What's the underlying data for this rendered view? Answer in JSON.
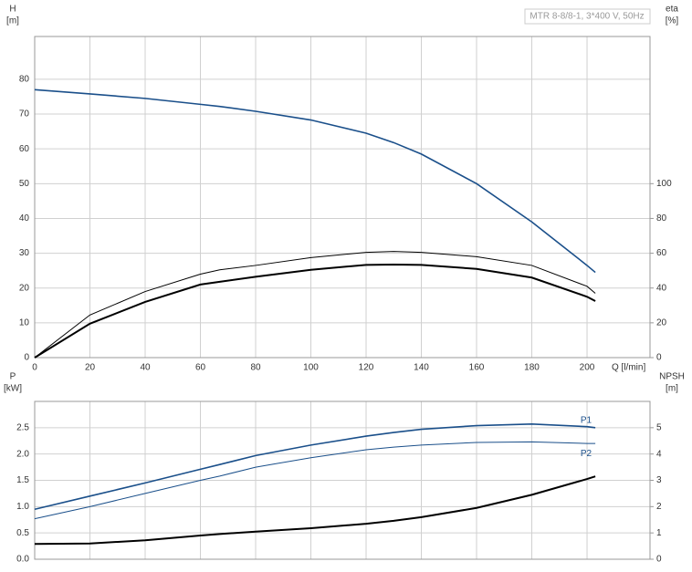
{
  "chart_data": [
    {
      "type": "line",
      "title": "MTR 8-8/8-1, 3*400 V, 50Hz",
      "ylabel": "H",
      "yunit": "[m]",
      "y2label": "eta",
      "y2unit": "[%]",
      "xlabel": "Q [l/min]",
      "x": [
        0,
        20,
        40,
        60,
        67,
        80,
        100,
        120,
        130,
        140,
        160,
        180,
        200,
        203
      ],
      "series": [
        {
          "color": "#1a4f8a",
          "linewidth": 1.6,
          "values": [
            77,
            75.8,
            74.5,
            72.8,
            72.2,
            70.8,
            68.3,
            64.5,
            61.8,
            58.5,
            50,
            39,
            26.5,
            24.5
          ]
        },
        {
          "color": "#000000",
          "linewidth": 1,
          "axis": "y2",
          "values": [
            0,
            24.5,
            38,
            48,
            50.5,
            53,
            57.5,
            60.5,
            61,
            60.5,
            58,
            53,
            41,
            37
          ]
        },
        {
          "color": "#000000",
          "linewidth": 2,
          "axis": "y2",
          "values": [
            0,
            19.5,
            32,
            42,
            43.6,
            46.5,
            50.5,
            53.3,
            53.5,
            53.3,
            51,
            46,
            35,
            32.5
          ]
        }
      ],
      "xlim": [
        0,
        222.8
      ],
      "xticks": [
        0,
        20,
        40,
        60,
        80,
        100,
        120,
        140,
        160,
        180,
        200
      ],
      "show_xtick_labels": true,
      "ylim": [
        0,
        92.3
      ],
      "yticks": [
        0,
        10,
        20,
        30,
        40,
        50,
        60,
        70,
        80
      ],
      "y2lim": [
        0,
        184.6
      ],
      "y2ticks": [
        0,
        20,
        40,
        60,
        80,
        100
      ],
      "grid": true
    },
    {
      "type": "line",
      "ylabel": "P",
      "yunit": "[kW]",
      "y2label": "NPSH",
      "y2unit": "[m]",
      "x": [
        0,
        20,
        40,
        60,
        67,
        80,
        100,
        120,
        130,
        140,
        160,
        180,
        200,
        203
      ],
      "series": [
        {
          "name": "P1",
          "label_position": "above",
          "color": "#1a4f8a",
          "linewidth": 1.6,
          "values": [
            0.95,
            1.2,
            1.45,
            1.71,
            1.8,
            1.97,
            2.17,
            2.34,
            2.41,
            2.47,
            2.54,
            2.57,
            2.52,
            2.5
          ]
        },
        {
          "name": "P2",
          "label_position": "below",
          "color": "#1a4f8a",
          "linewidth": 1,
          "values": [
            0.77,
            1.0,
            1.25,
            1.5,
            1.58,
            1.75,
            1.93,
            2.08,
            2.13,
            2.17,
            2.22,
            2.23,
            2.2,
            2.2
          ]
        },
        {
          "color": "#000000",
          "linewidth": 2,
          "axis": "y2",
          "values": [
            0.58,
            0.6,
            0.72,
            0.9,
            0.96,
            1.05,
            1.18,
            1.35,
            1.46,
            1.6,
            1.95,
            2.45,
            3.05,
            3.15
          ]
        }
      ],
      "xlim": [
        0,
        222.8
      ],
      "xticks": [
        0,
        20,
        40,
        60,
        80,
        100,
        120,
        140,
        160,
        180,
        200
      ],
      "show_xtick_labels": false,
      "ylim": [
        0,
        3.0
      ],
      "yticks": [
        {
          "value": 0,
          "label": "0.0"
        },
        0.5,
        {
          "value": 1,
          "label": "1.0"
        },
        1.5,
        {
          "value": 2,
          "label": "2.0"
        },
        2.5
      ],
      "y2lim": [
        0,
        6
      ],
      "y2ticks": [
        0,
        1,
        2,
        3,
        4,
        5
      ],
      "grid": true
    }
  ]
}
